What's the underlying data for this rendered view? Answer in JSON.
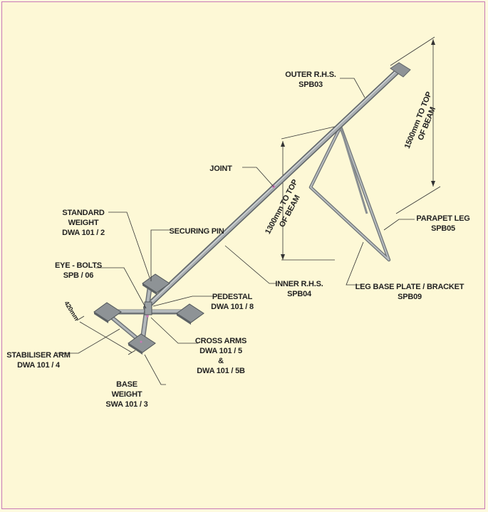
{
  "labels": {
    "outer_rhs": [
      "OUTER R.H.S.",
      "SPB03"
    ],
    "joint": "JOINT",
    "standard_weight": [
      "STANDARD",
      "WEIGHT",
      "DWA 101 / 2"
    ],
    "securing_pin": "SECURING PIN",
    "eye_bolts": [
      "EYE - BOLTS",
      "SPB / 06"
    ],
    "pedestal": [
      "PEDESTAL",
      "DWA 101 / 8"
    ],
    "inner_rhs": [
      "INNER R.H.S.",
      "SPB04"
    ],
    "parapet_leg": [
      "PARAPET LEG",
      "SPB05"
    ],
    "leg_base_plate": [
      "LEG BASE PLATE / BRACKET",
      "SPB09"
    ],
    "cross_arms": [
      "CROSS ARMS",
      "DWA 101 / 5",
      "&",
      "DWA 101 / 5B"
    ],
    "stabiliser_arm": [
      "STABILISER ARM",
      "DWA 101 / 4"
    ],
    "base_weight": [
      "BASE",
      "WEIGHT",
      "SWA 101 / 3"
    ]
  },
  "dimensions": {
    "top_beam_1500": [
      "1500mm TO TOP",
      "OF BEAM"
    ],
    "top_beam_1300": [
      "1300mm TO TOP",
      "OF BEAM"
    ],
    "small": "420mm"
  },
  "colors": {
    "steel": "#a9aeb1",
    "steel_dark": "#6f7477",
    "plate": "#8e9396",
    "line": "#333333"
  }
}
